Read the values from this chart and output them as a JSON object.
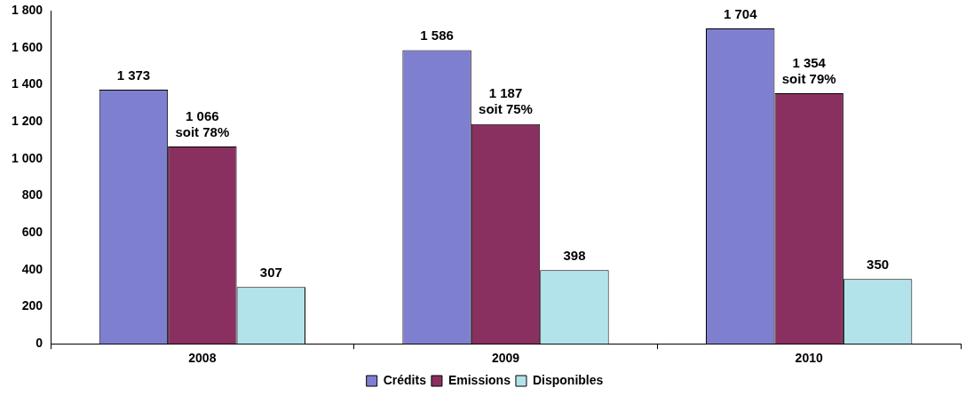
{
  "chart_data": {
    "type": "bar",
    "categories": [
      "2008",
      "2009",
      "2010"
    ],
    "series": [
      {
        "name": "Crédits",
        "color": "#7f7fd0",
        "values": [
          1373,
          1586,
          1704
        ],
        "value_labels": [
          "1 373",
          "1 586",
          "1 704"
        ]
      },
      {
        "name": "Emissions",
        "color": "#8a3060",
        "values": [
          1066,
          1187,
          1354
        ],
        "value_labels": [
          "1 066\nsoit 78%",
          "1 187\nsoit 75%",
          "1 354\nsoit 79%"
        ]
      },
      {
        "name": "Disponibles",
        "color": "#b3e3ea",
        "values": [
          307,
          398,
          350
        ],
        "value_labels": [
          "307",
          "398",
          "350"
        ]
      }
    ],
    "ylim": [
      0,
      1800
    ],
    "yticks": [
      0,
      200,
      400,
      600,
      800,
      {
        "value": 1000,
        "label": "1 000"
      },
      {
        "value": 1200,
        "label": "1 200"
      },
      {
        "value": 1400,
        "label": "1 400"
      },
      {
        "value": 1600,
        "label": "1 600"
      },
      {
        "value": 1800,
        "label": "1 800"
      }
    ],
    "grid": false,
    "legend": "bottom"
  }
}
